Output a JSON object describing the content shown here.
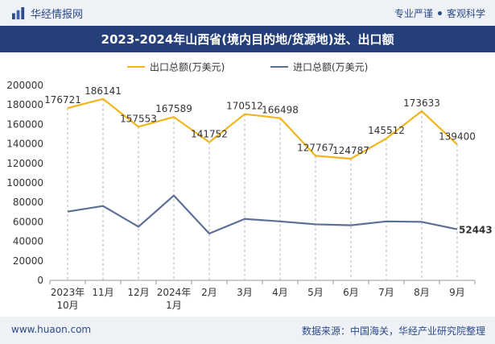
{
  "header": {
    "brand_name": "华经情报网",
    "tagline_left": "专业严谨",
    "tagline_right": "客观科学"
  },
  "title": "2023-2024年山西省(境内目的地/货源地)进、出口额",
  "footer": {
    "url": "www.huaon.com",
    "source": "数据来源：中国海关，华经产业研究院整理"
  },
  "colors": {
    "export": "#f2b51d",
    "import": "#5d6f95",
    "title_bg": "#243f7a",
    "bar_bg": "#eef1f6"
  },
  "chart_data": {
    "type": "line",
    "categories": [
      [
        "2023年",
        "10月"
      ],
      [
        "11月"
      ],
      [
        "12月"
      ],
      [
        "2024年",
        "1月"
      ],
      [
        "2月"
      ],
      [
        "3月"
      ],
      [
        "4月"
      ],
      [
        "5月"
      ],
      [
        "6月"
      ],
      [
        "7月"
      ],
      [
        "8月"
      ],
      [
        "9月"
      ]
    ],
    "series": [
      {
        "name": "出口总额(万美元)",
        "values": [
          176721,
          186141,
          157553,
          167589,
          141752,
          170512,
          166498,
          127767,
          124787,
          145512,
          173633,
          139400
        ],
        "labels": true
      },
      {
        "name": "进口总额(万美元)",
        "values": [
          70500,
          76300,
          55000,
          87000,
          48000,
          63000,
          60500,
          57500,
          56500,
          60500,
          60000,
          52443
        ],
        "labels": false,
        "last_label": "52443"
      }
    ],
    "y_ticks": [
      0,
      20000,
      40000,
      60000,
      80000,
      100000,
      120000,
      140000,
      160000,
      180000,
      200000
    ],
    "ylim": [
      0,
      200000
    ],
    "dashed_droplines": true,
    "legend_position": "top-center"
  }
}
